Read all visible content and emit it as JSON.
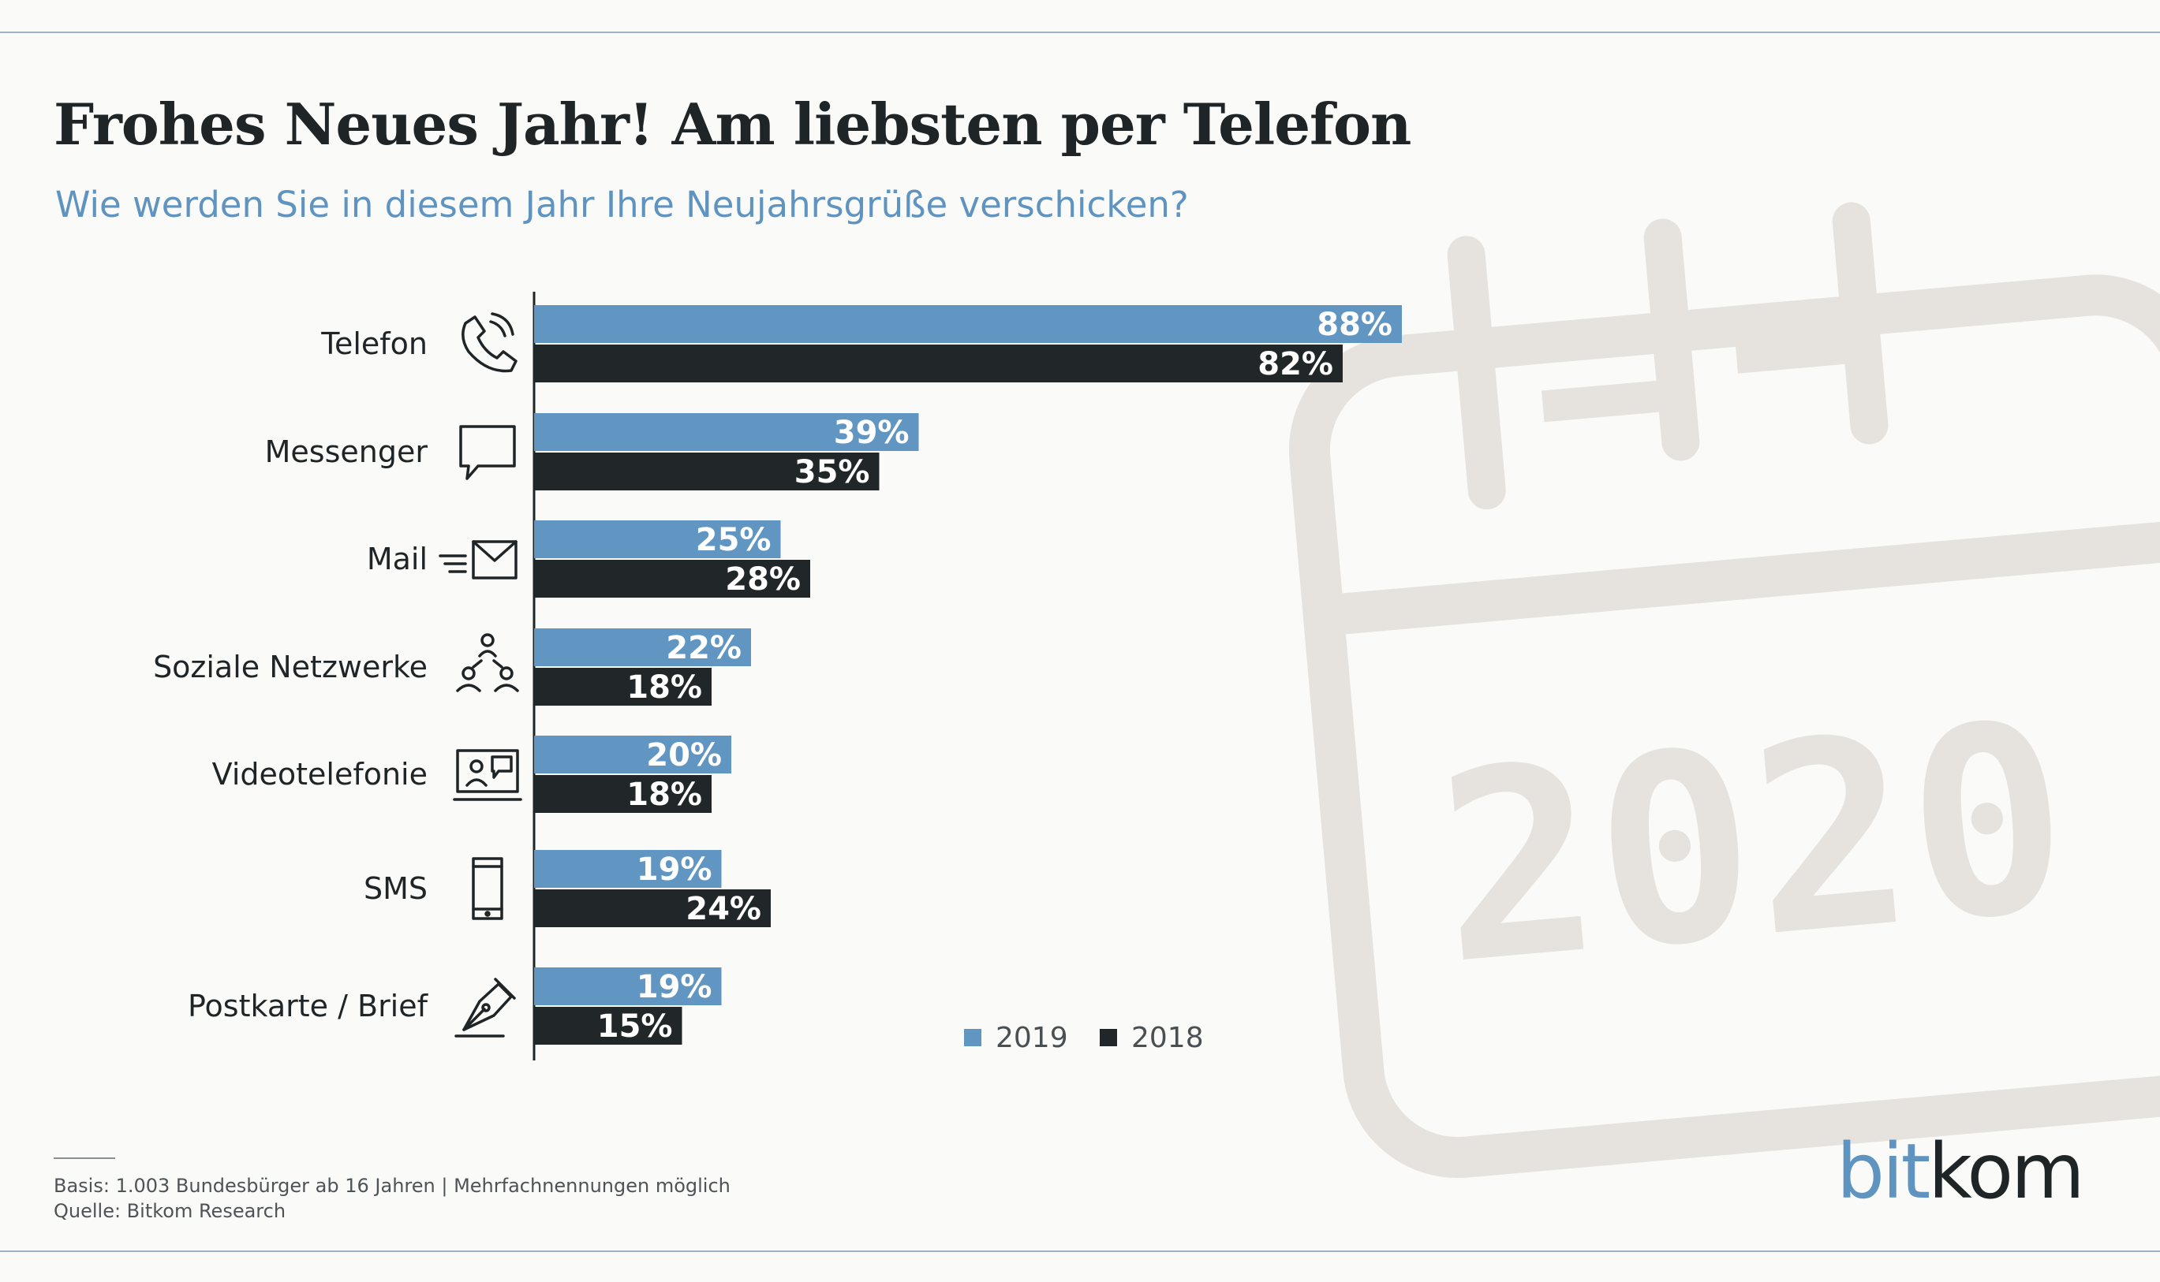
{
  "title": "Frohes Neues Jahr! Am liebsten per Telefon",
  "subtitle": "Wie werden Sie in diesem Jahr Ihre Neujahrsgrüße verschicken?",
  "footnote": {
    "line1": "Basis: 1.003 Bundesbürger ab 16 Jahren | Mehrfachnennungen möglich",
    "line2": "Quelle: Bitkom Research"
  },
  "brand": {
    "part1": "bit",
    "part2": "kom"
  },
  "background_art": {
    "year_text": "2020",
    "icon": "calendar-icon"
  },
  "colors": {
    "series_2019": "#6196c2",
    "series_2018": "#212628",
    "background": "#fafaf8",
    "accent": "#5f93c0"
  },
  "chart_data": {
    "type": "bar",
    "orientation": "horizontal",
    "categories": [
      "Telefon",
      "Messenger",
      "Mail",
      "Soziale Netzwerke",
      "Videotelefonie",
      "SMS",
      "Postkarte / Brief"
    ],
    "category_icons": [
      "phone-icon",
      "chat-bubble-icon",
      "mail-icon",
      "people-network-icon",
      "video-call-icon",
      "smartphone-icon",
      "pen-nib-icon"
    ],
    "series": [
      {
        "name": "2019",
        "values": [
          88,
          39,
          25,
          22,
          20,
          19,
          19
        ],
        "labels": [
          "88%",
          "39%",
          "25%",
          "22%",
          "20%",
          "19%",
          "19%"
        ]
      },
      {
        "name": "2018",
        "values": [
          82,
          35,
          28,
          18,
          18,
          24,
          15
        ],
        "labels": [
          "82%",
          "35%",
          "28%",
          "18%",
          "18%",
          "24%",
          "15%"
        ]
      }
    ],
    "unit": "%",
    "xlim": [
      0,
      100
    ],
    "grid": false,
    "legend": "bottom-center"
  }
}
